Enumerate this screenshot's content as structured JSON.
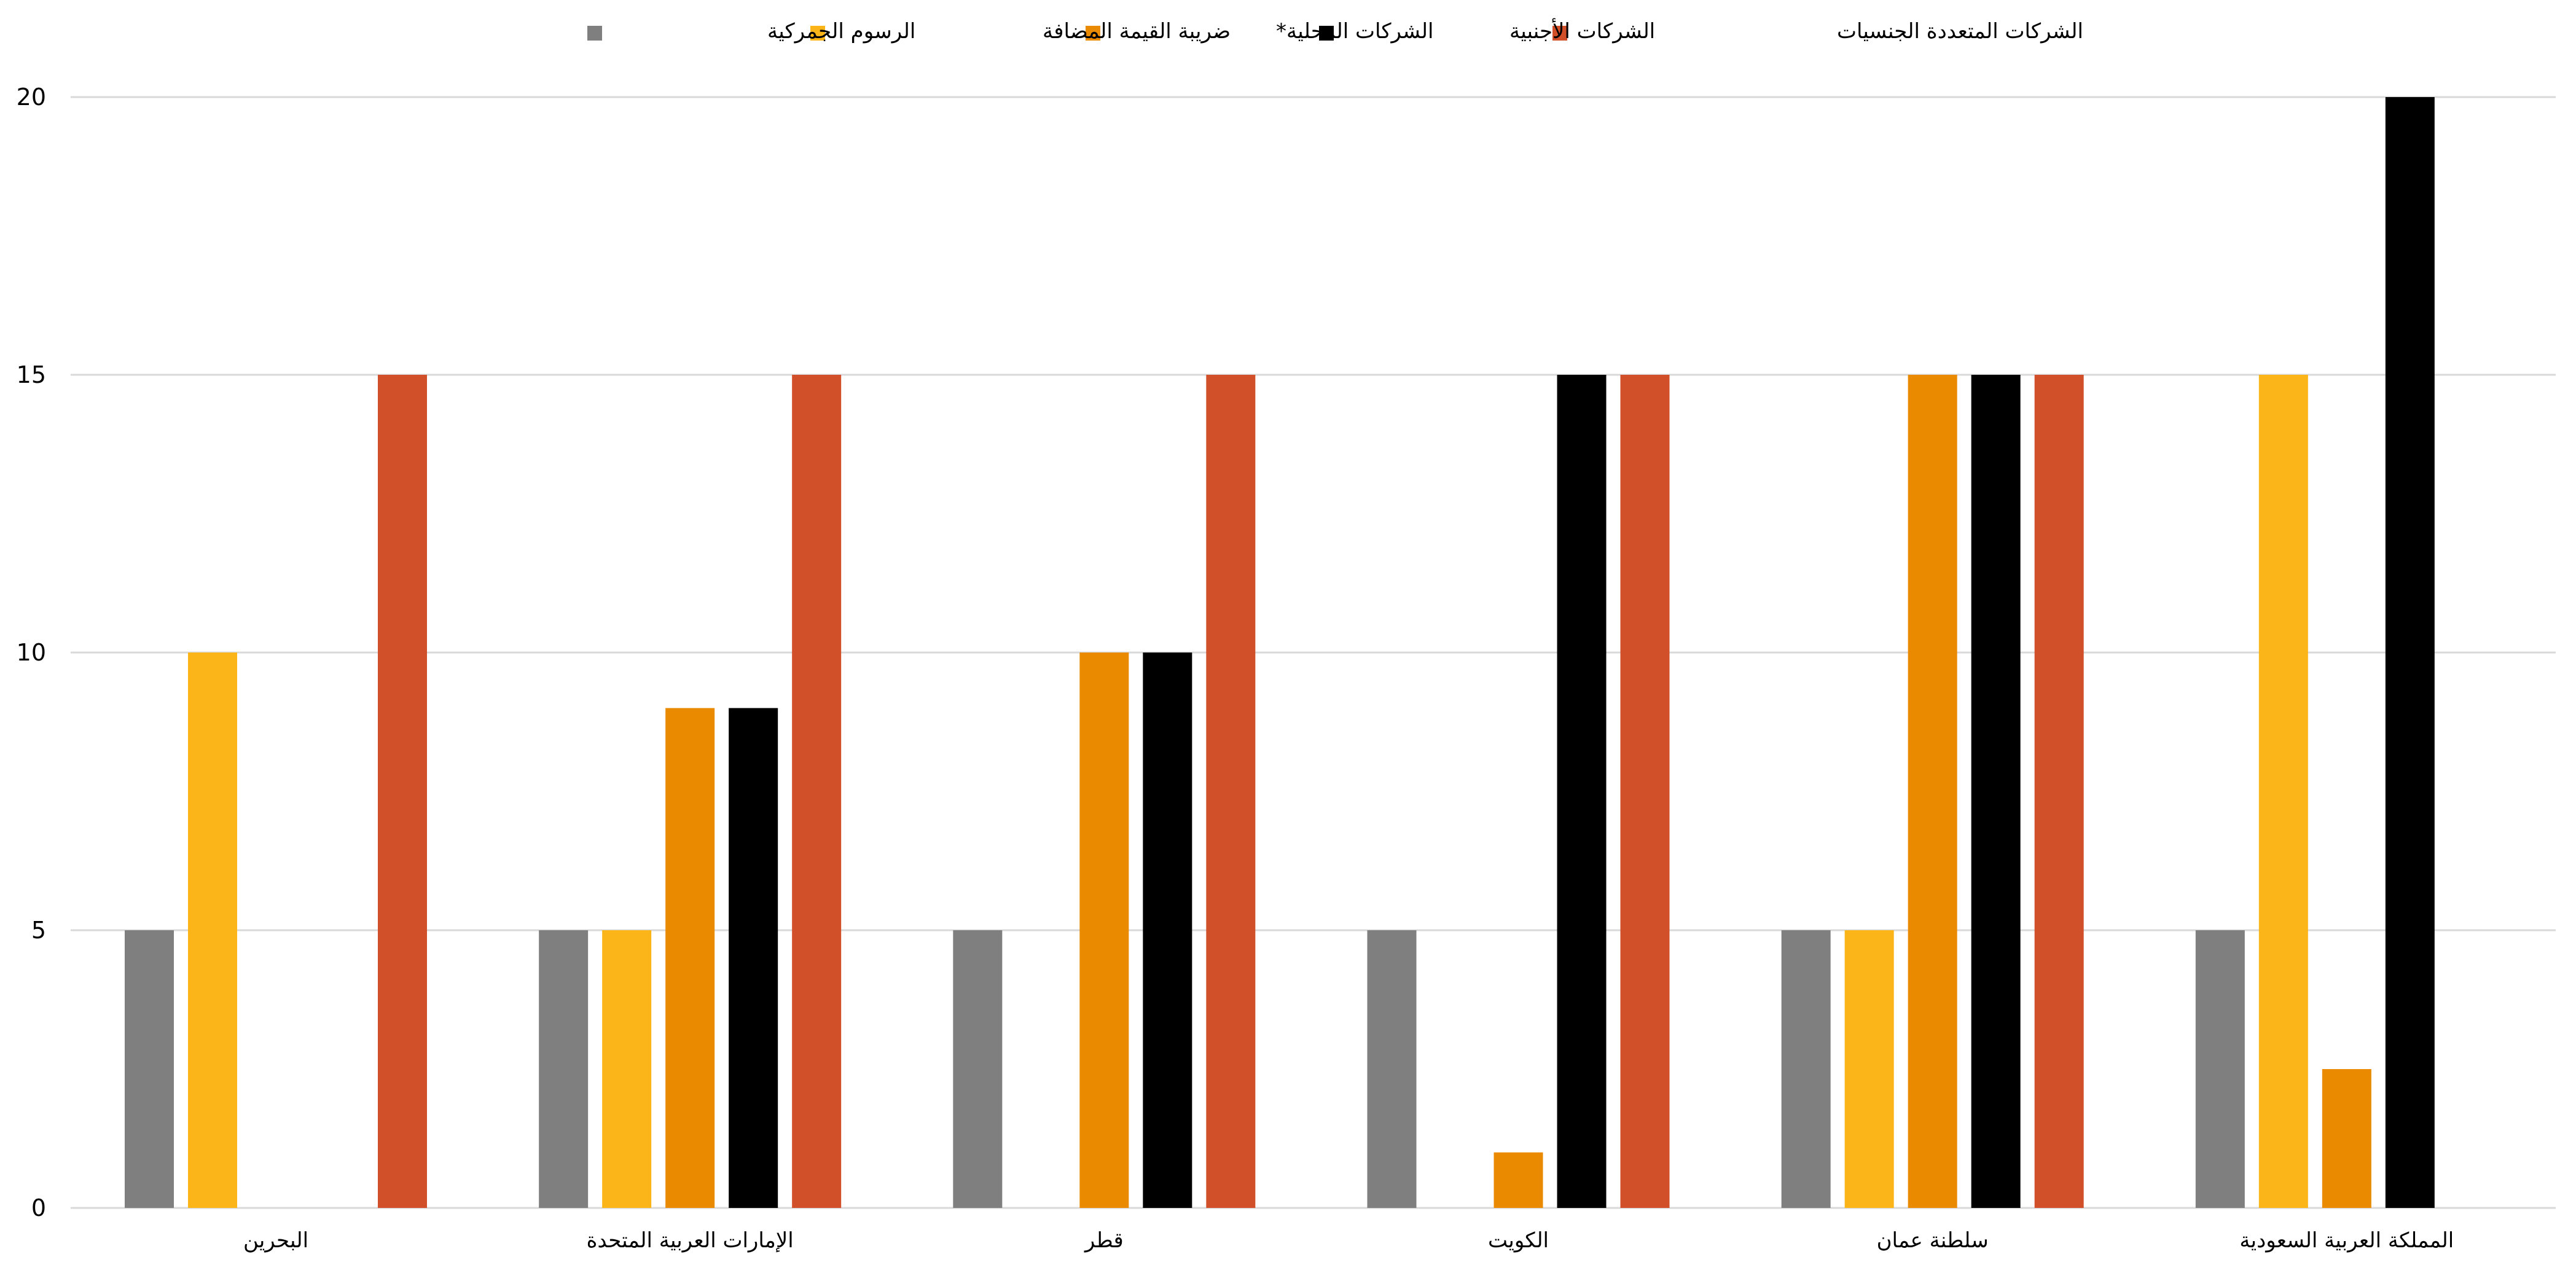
{
  "chart_data": {
    "type": "bar",
    "categories": [
      "البحرين",
      "الإمارات العربية المتحدة",
      "قطر",
      "الكويت",
      "سلطنة عمان",
      "المملكة العربية السعودية"
    ],
    "series": [
      {
        "name": "الرسوم الجمركية",
        "color": "#7f7f7f",
        "values": [
          5,
          5,
          5,
          5,
          5,
          5
        ]
      },
      {
        "name": "ضريبة القيمة المضافة",
        "color": "#fbb518",
        "values": [
          10,
          5,
          null,
          null,
          5,
          15
        ]
      },
      {
        "name": "الشركات المحلية*",
        "color": "#e98a00",
        "values": [
          null,
          9,
          10,
          1,
          15,
          2.5
        ]
      },
      {
        "name": "الشركات الأجنبية",
        "color": "#000000",
        "values": [
          null,
          9,
          10,
          15,
          15,
          20
        ]
      },
      {
        "name": "الشركات المتعددة الجنسيات",
        "color": "#d14f29",
        "values": [
          15,
          15,
          15,
          15,
          15,
          null
        ]
      }
    ],
    "yticks": [
      "0",
      "5",
      "10",
      "15",
      "20"
    ],
    "ylim": [
      0,
      20
    ],
    "grid": true,
    "legend_position": "top-center"
  }
}
